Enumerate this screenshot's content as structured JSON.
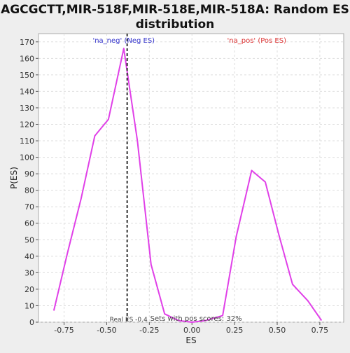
{
  "chart_data": {
    "type": "line",
    "title_lines": [
      "AGCGCTT,MIR-518F,MIR-518E,MIR-518A: Random ES",
      "distribution"
    ],
    "xlabel": "ES",
    "ylabel": "P(ES)",
    "xlim": [
      -0.9,
      0.89
    ],
    "ylim": [
      0,
      175
    ],
    "x_ticks": [
      -0.75,
      -0.5,
      -0.25,
      0.0,
      0.25,
      0.5,
      0.75
    ],
    "x_tick_labels": [
      "-0.75",
      "-0.50",
      "-0.25",
      "0.00",
      "0.25",
      "0.50",
      "0.75"
    ],
    "y_ticks": [
      0,
      10,
      20,
      30,
      40,
      50,
      60,
      70,
      80,
      90,
      100,
      110,
      120,
      130,
      140,
      150,
      160,
      170
    ],
    "grid": true,
    "series": [
      {
        "color": "#e040e8",
        "x": [
          -0.81,
          -0.73,
          -0.65,
          -0.57,
          -0.49,
          -0.4,
          -0.32,
          -0.24,
          -0.16,
          -0.08,
          0.0,
          0.08,
          0.18,
          0.26,
          0.35,
          0.43,
          0.51,
          0.59,
          0.68,
          0.76
        ],
        "y": [
          7,
          42,
          75,
          113,
          123,
          166,
          110,
          35,
          5,
          1,
          0,
          1,
          4,
          52,
          92,
          85,
          53,
          23,
          13,
          1
        ]
      }
    ],
    "real_es": -0.38,
    "annotations": {
      "neg_label": "'na_neg' (Neg ES)",
      "pos_label": "'na_pos' (Pos ES)",
      "real_es_label": "Real ES -0.4",
      "pos_scores_label": "Sets with pos scores: 32%"
    },
    "colors": {
      "line": "#e040e8",
      "neg": "#3333cc",
      "pos": "#dd3333",
      "plot_bg": "#ffffff",
      "page_bg": "#eeeeee",
      "grid": "#dddddd"
    }
  }
}
